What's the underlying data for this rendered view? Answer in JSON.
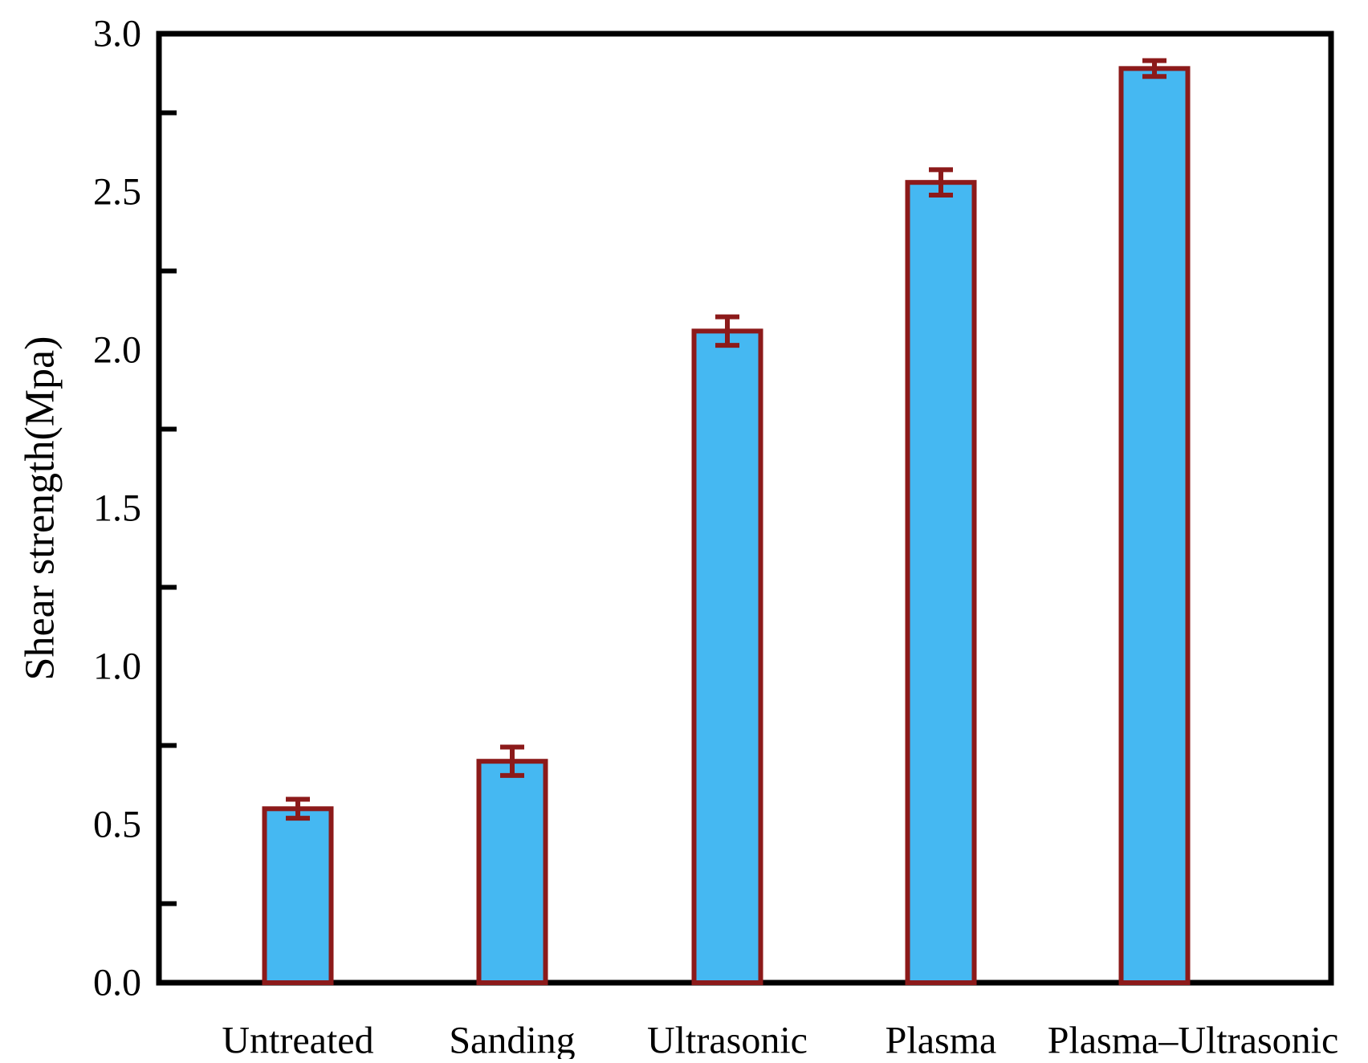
{
  "chart_data": {
    "type": "bar",
    "title": "",
    "xlabel": "",
    "ylabel": "Shear strength(Mpa)",
    "categories": [
      "Untreated",
      "Sanding",
      "Ultrasonic",
      "Plasma",
      "Plasma–Ultrasonic"
    ],
    "values": [
      0.55,
      0.7,
      2.06,
      2.53,
      2.89
    ],
    "errors": [
      0.03,
      0.045,
      0.045,
      0.04,
      0.025
    ],
    "ylim": [
      0,
      3.0
    ],
    "ytick_values": [
      0,
      0.5,
      1.0,
      1.5,
      2.0,
      2.5,
      3.0
    ],
    "ytick_labels": [
      "0.0",
      "0.5",
      "1.0",
      "1.5",
      "2.0",
      "2.5",
      "3.0"
    ],
    "minor_tick_values": [
      0.25,
      0.75,
      1.25,
      1.75,
      2.25,
      2.75
    ],
    "grid": false,
    "legend": "none",
    "colors": {
      "bar_fill": "#45B8F2",
      "bar_border": "#8C1A1A",
      "error_bar": "#8C1A1A",
      "axis": "#000000",
      "background": "#FFFFFF"
    }
  }
}
